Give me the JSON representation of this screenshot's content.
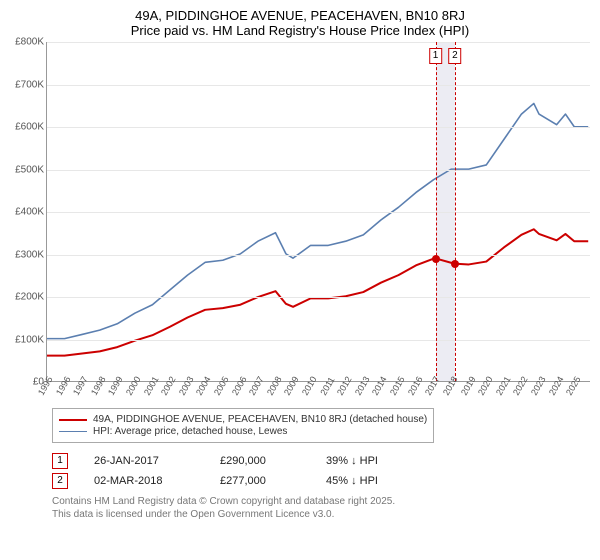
{
  "title": {
    "line1": "49A, PIDDINGHOE AVENUE, PEACEHAVEN, BN10 8RJ",
    "line2": "Price paid vs. HM Land Registry's House Price Index (HPI)"
  },
  "chart": {
    "type": "line",
    "background_color": "#ffffff",
    "grid_color": "#e7e7e7",
    "axis_color": "#999999",
    "tick_font_size": 10,
    "xlim": [
      1995,
      2025.9
    ],
    "ylim": [
      0,
      800000
    ],
    "y_ticks": [
      {
        "v": 0,
        "label": "£0"
      },
      {
        "v": 100000,
        "label": "£100K"
      },
      {
        "v": 200000,
        "label": "£200K"
      },
      {
        "v": 300000,
        "label": "£300K"
      },
      {
        "v": 400000,
        "label": "£400K"
      },
      {
        "v": 500000,
        "label": "£500K"
      },
      {
        "v": 600000,
        "label": "£600K"
      },
      {
        "v": 700000,
        "label": "£700K"
      },
      {
        "v": 800000,
        "label": "£800K"
      }
    ],
    "x_ticks": [
      1995,
      1996,
      1997,
      1998,
      1999,
      2000,
      2001,
      2002,
      2003,
      2004,
      2005,
      2006,
      2007,
      2008,
      2009,
      2010,
      2011,
      2012,
      2013,
      2014,
      2015,
      2016,
      2017,
      2018,
      2019,
      2020,
      2021,
      2022,
      2023,
      2024,
      2025
    ],
    "series": [
      {
        "id": "hpi",
        "label": "HPI: Average price, detached house, Lewes",
        "color": "#5b7fb0",
        "line_width": 1.6,
        "points": [
          [
            1995,
            100000
          ],
          [
            1996,
            100000
          ],
          [
            1997,
            110000
          ],
          [
            1998,
            120000
          ],
          [
            1999,
            135000
          ],
          [
            2000,
            160000
          ],
          [
            2001,
            180000
          ],
          [
            2002,
            215000
          ],
          [
            2003,
            250000
          ],
          [
            2004,
            280000
          ],
          [
            2005,
            285000
          ],
          [
            2006,
            300000
          ],
          [
            2007,
            330000
          ],
          [
            2008,
            350000
          ],
          [
            2008.6,
            300000
          ],
          [
            2009,
            290000
          ],
          [
            2010,
            320000
          ],
          [
            2011,
            320000
          ],
          [
            2012,
            330000
          ],
          [
            2013,
            345000
          ],
          [
            2014,
            380000
          ],
          [
            2015,
            410000
          ],
          [
            2016,
            445000
          ],
          [
            2017,
            475000
          ],
          [
            2018,
            500000
          ],
          [
            2019,
            500000
          ],
          [
            2020,
            510000
          ],
          [
            2021,
            570000
          ],
          [
            2022,
            630000
          ],
          [
            2022.7,
            655000
          ],
          [
            2023,
            630000
          ],
          [
            2024,
            605000
          ],
          [
            2024.5,
            630000
          ],
          [
            2025,
            600000
          ],
          [
            2025.8,
            600000
          ]
        ]
      },
      {
        "id": "property",
        "label": "49A, PIDDINGHOE AVENUE, PEACEHAVEN, BN10 8RJ (detached house)",
        "color": "#cc0000",
        "line_width": 2,
        "points": [
          [
            1995,
            60000
          ],
          [
            1996,
            60000
          ],
          [
            1997,
            65000
          ],
          [
            1998,
            70000
          ],
          [
            1999,
            80000
          ],
          [
            2000,
            95000
          ],
          [
            2001,
            108000
          ],
          [
            2002,
            128000
          ],
          [
            2003,
            150000
          ],
          [
            2004,
            168000
          ],
          [
            2005,
            172000
          ],
          [
            2006,
            180000
          ],
          [
            2007,
            198000
          ],
          [
            2008,
            212000
          ],
          [
            2008.6,
            182000
          ],
          [
            2009,
            175000
          ],
          [
            2010,
            195000
          ],
          [
            2011,
            195000
          ],
          [
            2012,
            200000
          ],
          [
            2013,
            210000
          ],
          [
            2014,
            232000
          ],
          [
            2015,
            250000
          ],
          [
            2016,
            273000
          ],
          [
            2017.07,
            290000
          ],
          [
            2018.17,
            277000
          ],
          [
            2019,
            275000
          ],
          [
            2020,
            282000
          ],
          [
            2021,
            315000
          ],
          [
            2022,
            345000
          ],
          [
            2022.7,
            358000
          ],
          [
            2023,
            347000
          ],
          [
            2024,
            332000
          ],
          [
            2024.5,
            347000
          ],
          [
            2025,
            330000
          ],
          [
            2025.8,
            330000
          ]
        ]
      }
    ],
    "highlight_band": {
      "x_start": 2017.07,
      "x_end": 2018.17,
      "color": "rgba(200,200,220,0.35)"
    },
    "sale_markers": [
      {
        "num": "1",
        "x": 2017.07,
        "y": 290000
      },
      {
        "num": "2",
        "x": 2018.17,
        "y": 277000
      }
    ]
  },
  "legend": {
    "border_color": "#aaaaaa",
    "items": [
      {
        "color": "#cc0000",
        "width": 2,
        "text": "49A, PIDDINGHOE AVENUE, PEACEHAVEN, BN10 8RJ (detached house)"
      },
      {
        "color": "#5b7fb0",
        "width": 1.6,
        "text": "HPI: Average price, detached house, Lewes"
      }
    ]
  },
  "sales": [
    {
      "num": "1",
      "date": "26-JAN-2017",
      "price": "£290,000",
      "delta_pct": "39%",
      "delta_dir": "↓",
      "delta_suffix": "HPI"
    },
    {
      "num": "2",
      "date": "02-MAR-2018",
      "price": "£277,000",
      "delta_pct": "45%",
      "delta_dir": "↓",
      "delta_suffix": "HPI"
    }
  ],
  "footer": {
    "line1": "Contains HM Land Registry data © Crown copyright and database right 2025.",
    "line2": "This data is licensed under the Open Government Licence v3.0."
  }
}
